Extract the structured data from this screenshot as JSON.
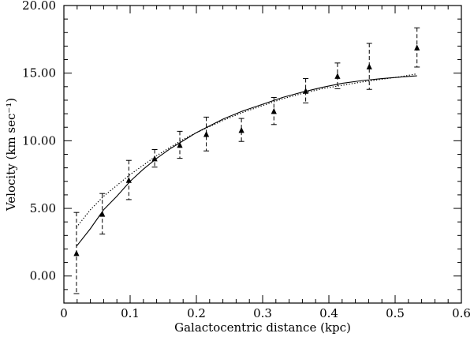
{
  "chart_data": {
    "type": "scatter",
    "title": "",
    "xlabel": "Galactocentric distance (kpc)",
    "ylabel": "Velocity (km sec⁻¹)",
    "xlim": [
      0,
      0.6
    ],
    "ylim": [
      -2,
      20
    ],
    "x_ticks": [
      0,
      0.1,
      0.2,
      0.3,
      0.4,
      0.5,
      0.6
    ],
    "x_tick_labels": [
      "0",
      "0.1",
      "0.2",
      "0.3",
      "0.4",
      "0.5",
      "0.6"
    ],
    "y_ticks": [
      0,
      5,
      10,
      15,
      20
    ],
    "y_tick_labels": [
      "0.00",
      "5.00",
      "10.00",
      "15.00",
      "20.00"
    ],
    "grid": false,
    "legend": "none",
    "series": [
      {
        "kind": "points-with-errorbars",
        "marker": "triangle",
        "x": [
          0.019,
          0.058,
          0.098,
          0.137,
          0.175,
          0.215,
          0.268,
          0.317,
          0.365,
          0.413,
          0.461,
          0.533
        ],
        "y": [
          1.7,
          4.6,
          7.1,
          8.7,
          9.7,
          10.5,
          10.8,
          12.2,
          13.7,
          14.8,
          15.5,
          16.9
        ],
        "err": [
          3.0,
          1.5,
          1.45,
          0.65,
          1.0,
          1.25,
          0.85,
          1.0,
          0.9,
          0.95,
          1.7,
          1.45
        ]
      },
      {
        "kind": "solid-line",
        "x": [
          0.019,
          0.04,
          0.06,
          0.08,
          0.1,
          0.12,
          0.14,
          0.16,
          0.18,
          0.2,
          0.22,
          0.24,
          0.27,
          0.3,
          0.33,
          0.36,
          0.39,
          0.42,
          0.45,
          0.48,
          0.51,
          0.533
        ],
        "y": [
          2.2,
          3.5,
          4.9,
          5.9,
          7.0,
          7.9,
          8.7,
          9.4,
          10.0,
          10.6,
          11.1,
          11.6,
          12.2,
          12.7,
          13.2,
          13.6,
          13.95,
          14.25,
          14.45,
          14.6,
          14.72,
          14.8
        ]
      },
      {
        "kind": "dotted-line",
        "x": [
          0.019,
          0.04,
          0.06,
          0.08,
          0.1,
          0.12,
          0.14,
          0.16,
          0.18,
          0.2,
          0.22,
          0.24,
          0.27,
          0.3,
          0.33,
          0.36,
          0.39,
          0.42,
          0.45,
          0.48,
          0.51,
          0.533
        ],
        "y": [
          3.6,
          4.9,
          5.9,
          6.7,
          7.5,
          8.2,
          8.9,
          9.5,
          10.1,
          10.6,
          11.05,
          11.5,
          12.1,
          12.6,
          13.1,
          13.5,
          13.85,
          14.1,
          14.35,
          14.55,
          14.75,
          14.95
        ]
      }
    ]
  }
}
